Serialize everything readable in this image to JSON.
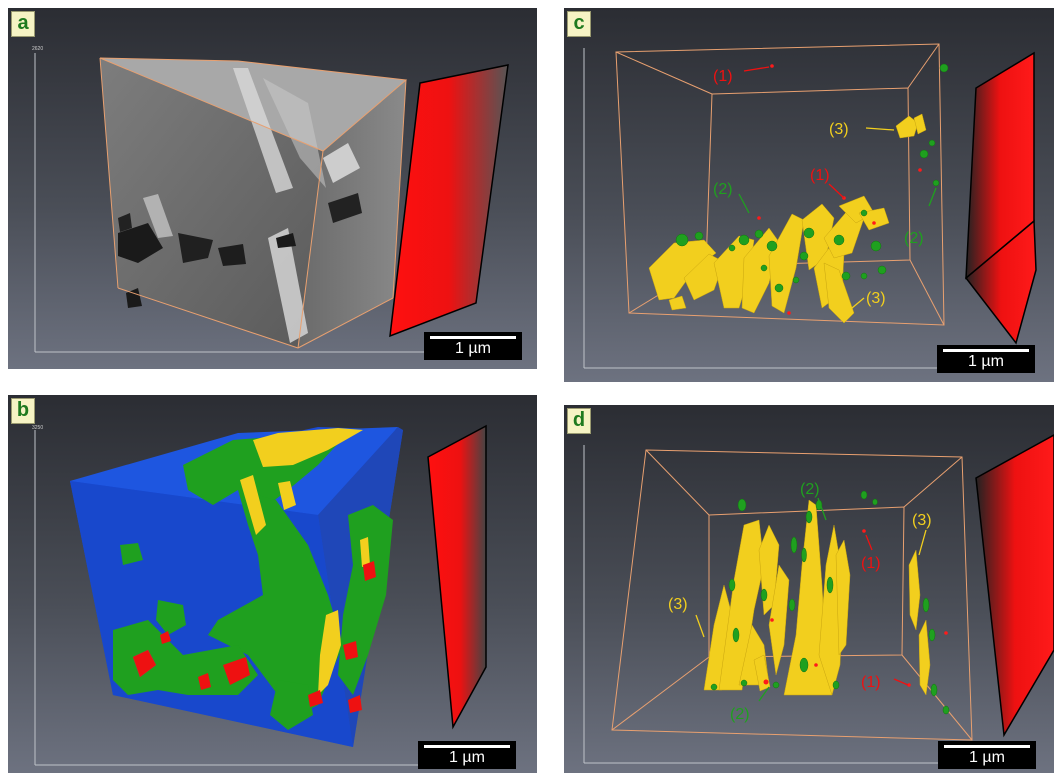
{
  "panels": [
    {
      "label": "a",
      "scale_bar": "1 µm",
      "axis_max": "2620"
    },
    {
      "label": "b",
      "scale_bar": "1 µm",
      "axis_max": "3250"
    },
    {
      "label": "c",
      "scale_bar": "1 µm",
      "annotations": {
        "red": "(1)",
        "green": "(2)",
        "yellow": "(3)"
      }
    },
    {
      "label": "d",
      "scale_bar": "1 µm",
      "annotations": {
        "red": "(1)",
        "green": "(2)",
        "yellow": "(3)"
      }
    }
  ],
  "colors": {
    "pore": "#ff1a1a",
    "phase_green": "#1fa01f",
    "phase_yellow": "#f2cf1e",
    "matrix_blue": "#1544c8",
    "box_edges": "#e8a070",
    "label_box": "#f6f3c4",
    "label_text": "#1f7a1f"
  }
}
